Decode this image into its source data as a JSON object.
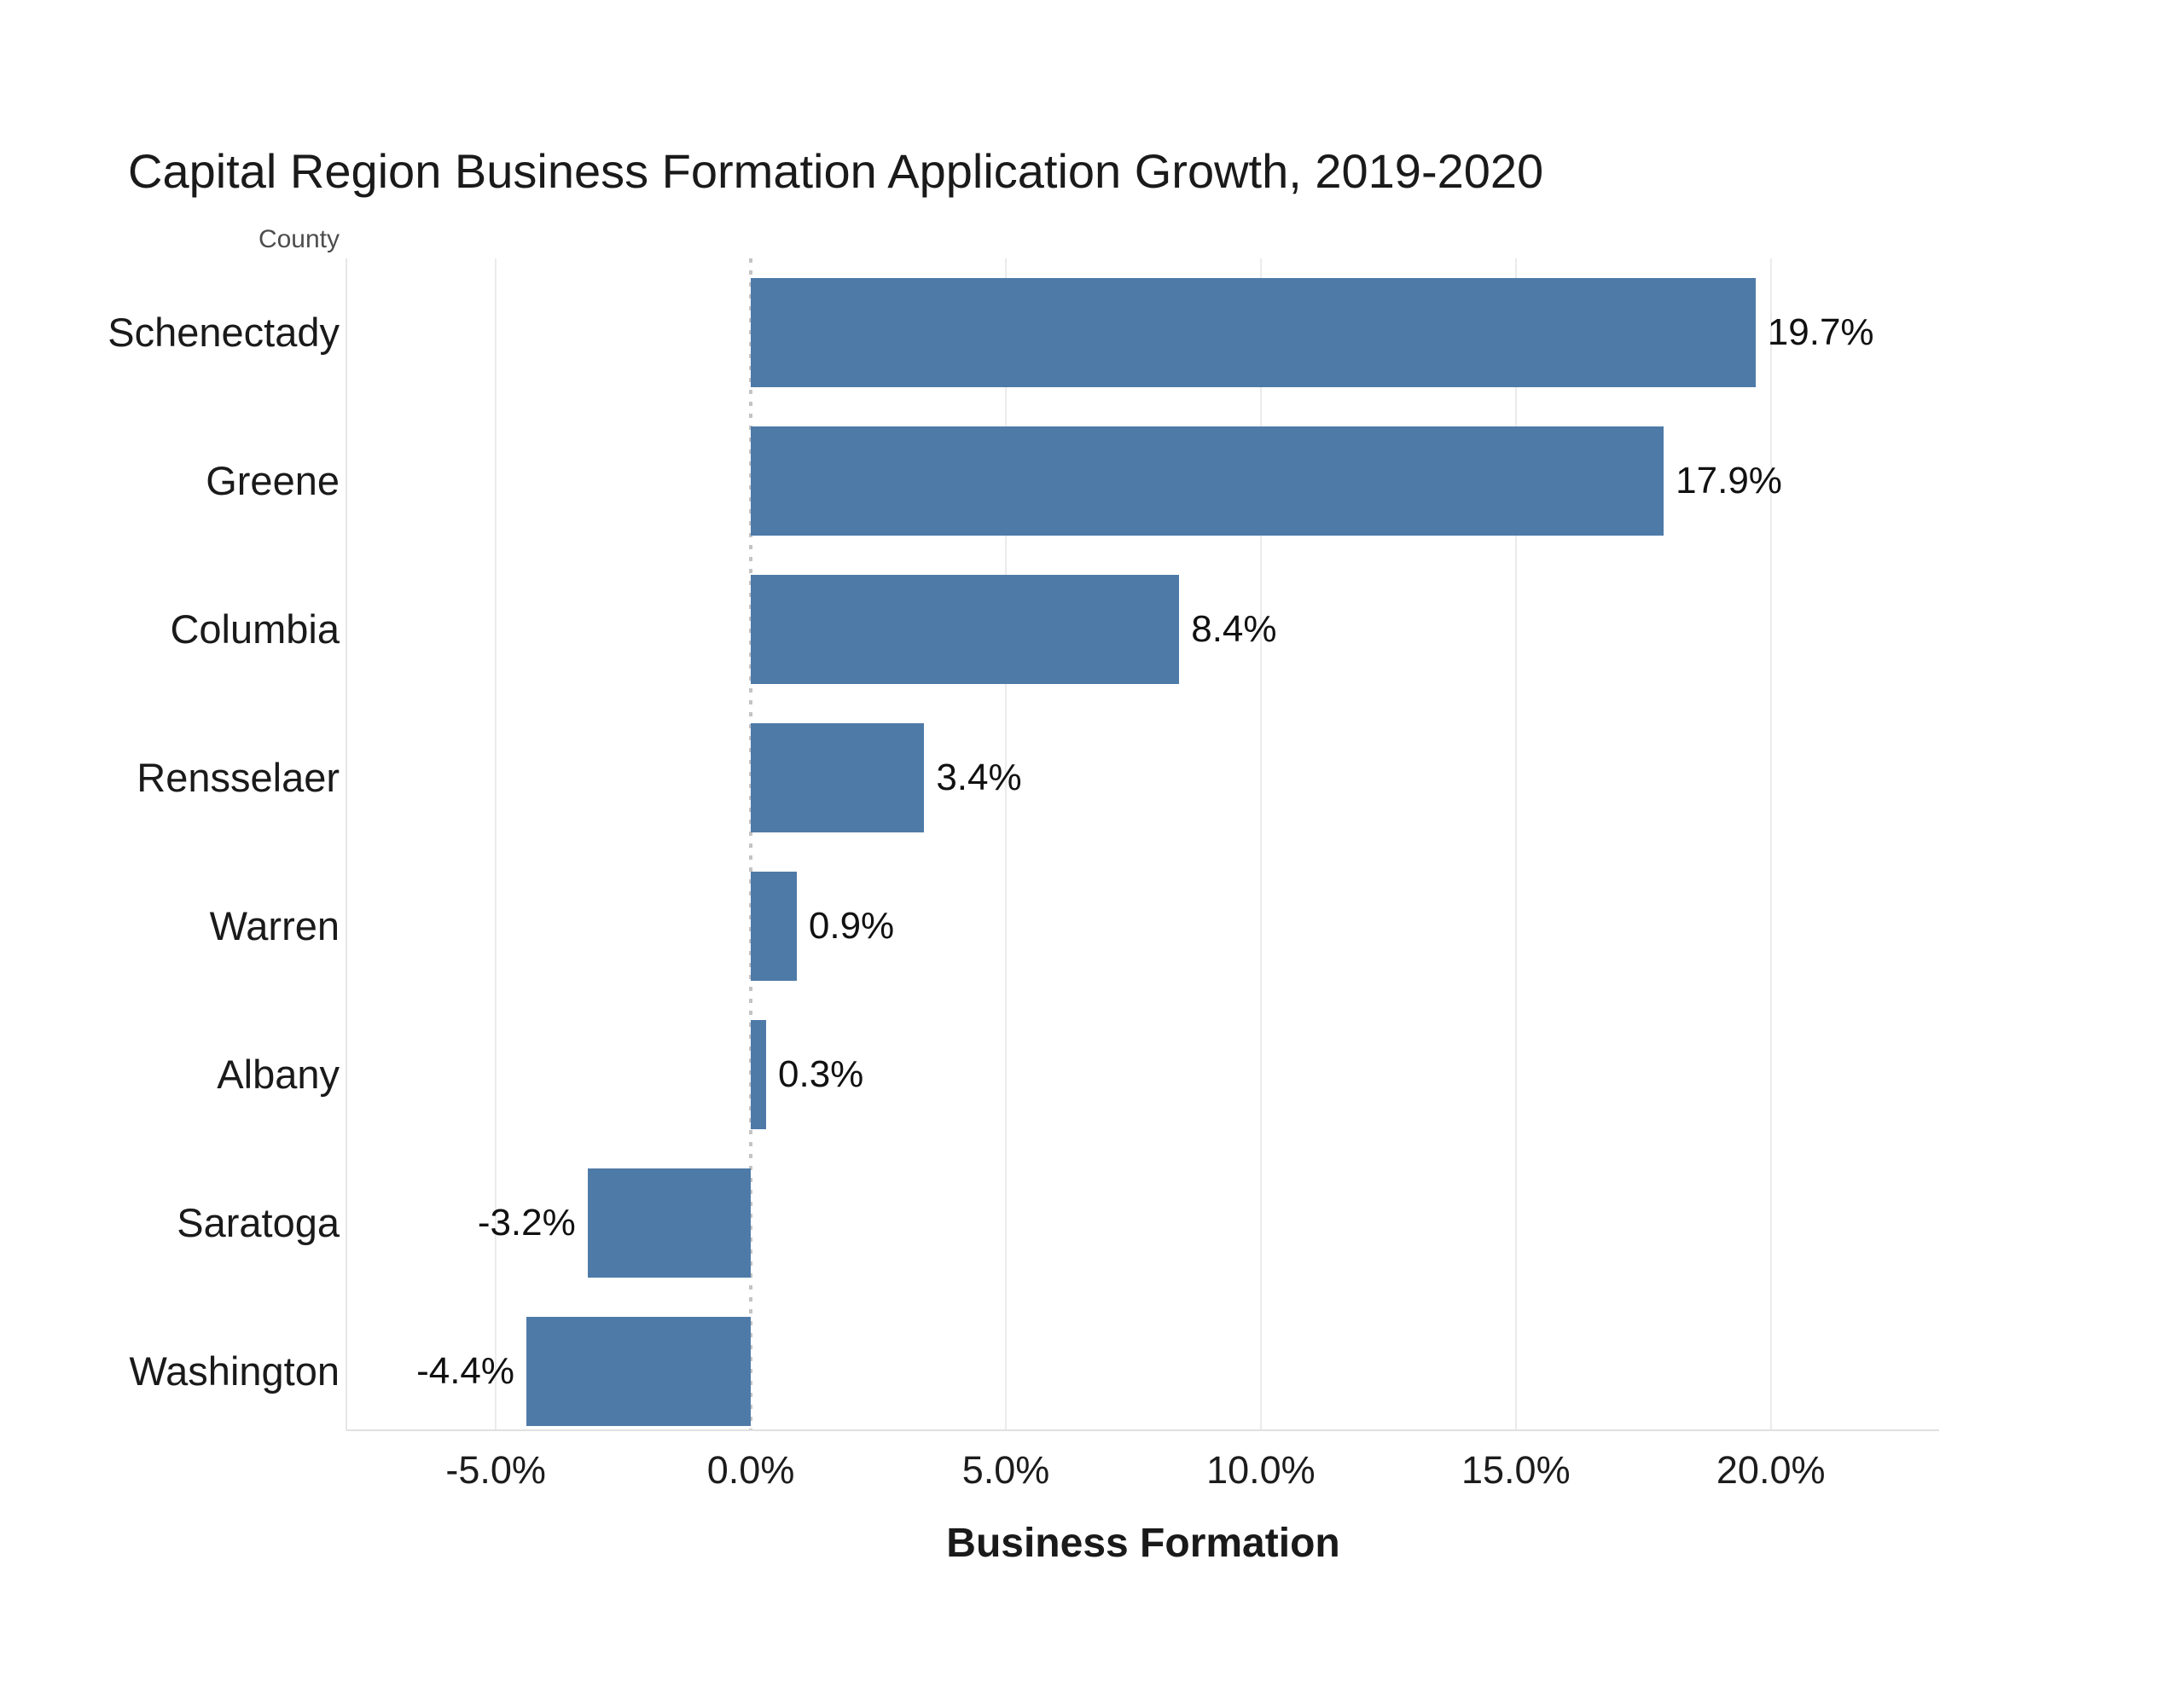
{
  "page": {
    "background": "#ffffff"
  },
  "chart_data": {
    "type": "bar",
    "orientation": "horizontal",
    "title": "Capital Region Business Formation Application Growth, 2019-2020",
    "row_header": "County",
    "xlabel": "Business Formation",
    "ylabel": "County",
    "categories": [
      "Schenectady",
      "Greene",
      "Columbia",
      "Rensselaer",
      "Warren",
      "Albany",
      "Saratoga",
      "Washington"
    ],
    "values": [
      19.7,
      17.9,
      8.4,
      3.4,
      0.9,
      0.3,
      -3.2,
      -4.4
    ],
    "value_labels": [
      "19.7%",
      "17.9%",
      "8.4%",
      "3.4%",
      "0.9%",
      "0.3%",
      "-3.2%",
      "-4.4%"
    ],
    "x_ticks": [
      -5,
      0,
      5,
      10,
      15,
      20
    ],
    "x_tick_labels": [
      "-5.0%",
      "0.0%",
      "5.0%",
      "10.0%",
      "15.0%",
      "20.0%"
    ],
    "xlim": [
      -7.93,
      23.3
    ],
    "grid": "vertical-solid-light",
    "zero_line": "dotted-vertical",
    "legend_position": "none",
    "colors": {
      "bar": "#4e7aa8",
      "gridline": "#ebebeb",
      "plot_border": "#e7e7e7",
      "axis_line": "#e0e0e0",
      "zero_line_dots": "#c4c4c4",
      "title_text": "#1a1a1a",
      "label_text": "#1a1a1a",
      "value_text": "#111111",
      "tick_text": "#1c1c1c",
      "header_text": "#4d4d4d"
    }
  }
}
